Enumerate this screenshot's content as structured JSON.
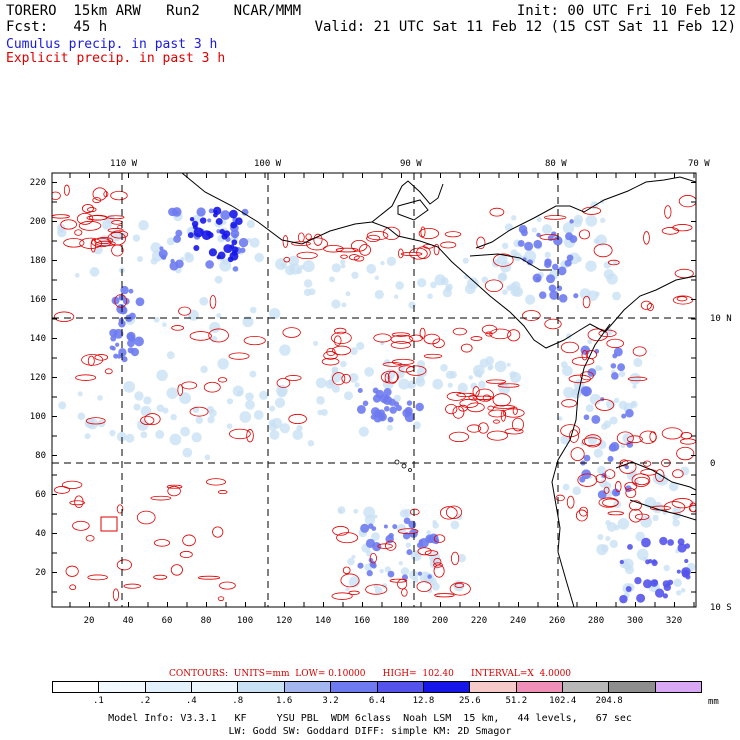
{
  "header": {
    "top_left": "TORERO  15km ARW   Run2    NCAR/MMM",
    "top_right": "Init: 00 UTC Fri 10 Feb 12",
    "fcst": "Fcst:   45 h",
    "valid": "Valid: 21 UTC Sat 11 Feb 12 (15 CST Sat 11 Feb 12)",
    "cumulus": "Cumulus precip. in past 3 h",
    "explicit": "Explicit precip. in past 3 h"
  },
  "colors": {
    "cumulus": "#1a1aee",
    "explicit": "#e00000",
    "grid": "#000000",
    "coast": "#000000"
  },
  "axes": {
    "lon_labels": [
      "110 W",
      "100 W",
      "90 W",
      "80 W",
      "70 W"
    ],
    "lat_labels": [
      "10 N",
      "0",
      "10 S"
    ],
    "x_ticks": [
      "20",
      "40",
      "60",
      "80",
      "100",
      "120",
      "140",
      "160",
      "180",
      "200",
      "220",
      "240",
      "260",
      "280",
      "300",
      "320"
    ],
    "y_ticks": [
      "20",
      "40",
      "60",
      "80",
      "100",
      "120",
      "140",
      "160",
      "180",
      "200",
      "220"
    ]
  },
  "contours_line": "CONTOURS:  UNITS=mm  LOW= 0.10000      HIGH=  102.40      INTERVAL=X  4.0000",
  "colorbar": {
    "colors": [
      "#ffffff",
      "#f2f9ff",
      "#e3f1fd",
      "#eaf6fb",
      "#c9e1f4",
      "#a3b6f0",
      "#6e7bf0",
      "#5454ec",
      "#1616e8",
      "#f7caca",
      "#f090b8",
      "#b8b8b8",
      "#8e8e8e",
      "#d8a8f4"
    ],
    "labels": [
      ".1",
      ".2",
      ".4",
      ".8",
      "1.6",
      "3.2",
      "6.4",
      "12.8",
      "25.6",
      "51.2",
      "102.4",
      "204.8"
    ],
    "unit": "mm"
  },
  "footer": {
    "line1": "Model Info: V3.3.1   KF     YSU PBL  WDM 6class  Noah LSM  15 km,   44 levels,   67 sec",
    "line2": "LW: Godd SW: Goddard DIFF: simple KM: 2D Smagor"
  }
}
